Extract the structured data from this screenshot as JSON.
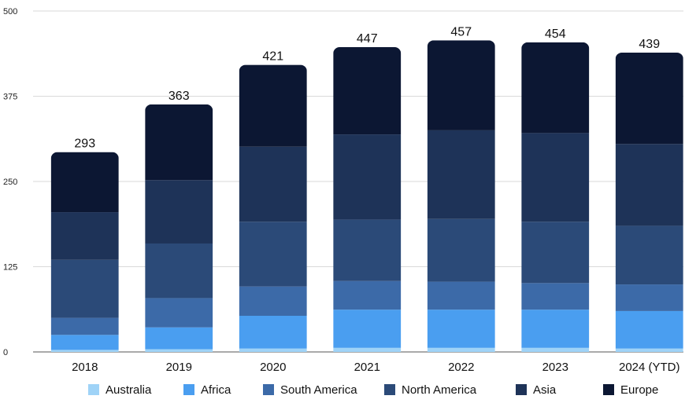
{
  "chart_data": {
    "type": "bar",
    "stacked": true,
    "categories": [
      "2018",
      "2019",
      "2020",
      "2021",
      "2022",
      "2023",
      "2024 (YTD)"
    ],
    "series": [
      {
        "name": "Australia",
        "color": "#9fd3f7",
        "values": [
          3,
          4,
          5,
          6,
          6,
          6,
          5
        ]
      },
      {
        "name": "Africa",
        "color": "#4a9ef0",
        "values": [
          22,
          32,
          48,
          56,
          56,
          56,
          55
        ]
      },
      {
        "name": "South America",
        "color": "#3c6aa8",
        "values": [
          25,
          43,
          43,
          42,
          41,
          39,
          39
        ]
      },
      {
        "name": "North America",
        "color": "#2b4a78",
        "values": [
          85,
          80,
          95,
          90,
          92,
          90,
          86
        ]
      },
      {
        "name": "Asia",
        "color": "#1e3358",
        "values": [
          70,
          93,
          110,
          125,
          130,
          130,
          120
        ]
      },
      {
        "name": "Europe",
        "color": "#0c1733",
        "values": [
          88,
          111,
          120,
          128,
          132,
          133,
          134
        ]
      }
    ],
    "totals": [
      "293",
      "363",
      "421",
      "447",
      "457",
      "454",
      "439"
    ],
    "ylim": [
      0,
      500
    ],
    "yticks": [
      "0",
      "125",
      "250",
      "375",
      "500"
    ],
    "grid": true,
    "legend": "bottom",
    "title": "",
    "xlabel": "",
    "ylabel": ""
  }
}
